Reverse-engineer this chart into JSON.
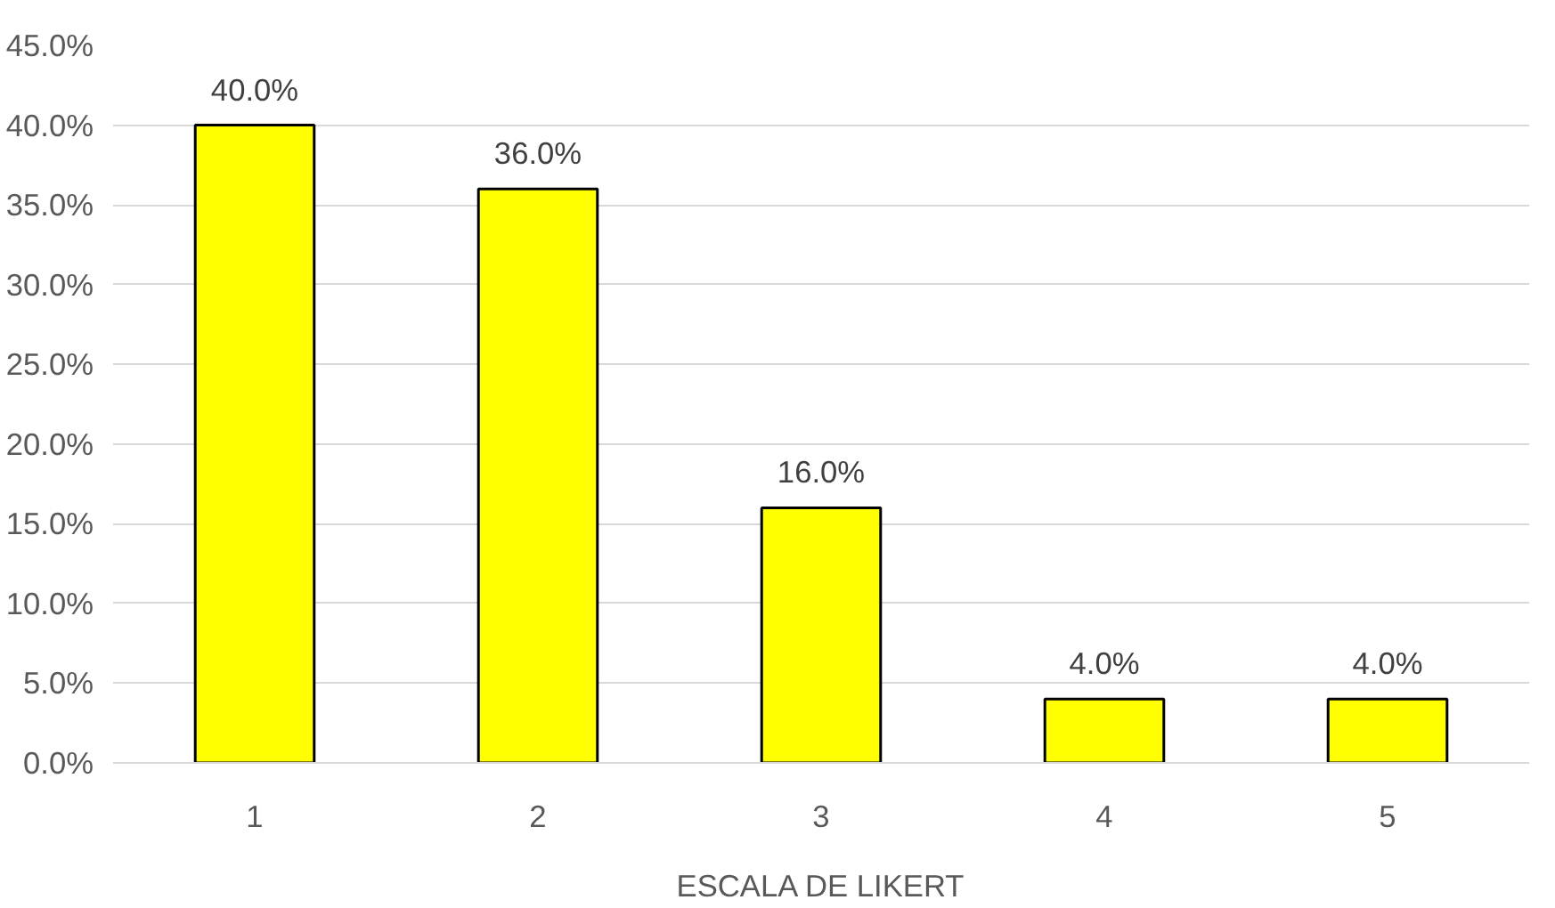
{
  "chart_data": {
    "type": "bar",
    "xlabel": "ESCALA DE LIKERT",
    "categories": [
      "1",
      "2",
      "3",
      "4",
      "5"
    ],
    "values": [
      40,
      36,
      16,
      4,
      4
    ],
    "value_labels": [
      "40.0%",
      "36.0%",
      "16.0%",
      "4.0%",
      "4.0%"
    ],
    "color": "#ffff00",
    "ylim": [
      0,
      45
    ],
    "yticks": [
      {
        "value": 0,
        "label": "0.0%"
      },
      {
        "value": 5,
        "label": "5.0%"
      },
      {
        "value": 10,
        "label": "10.0%"
      },
      {
        "value": 15,
        "label": "15.0%"
      },
      {
        "value": 20,
        "label": "20.0%"
      },
      {
        "value": 25,
        "label": "25.0%"
      },
      {
        "value": 30,
        "label": "30.0%"
      },
      {
        "value": 35,
        "label": "35.0%"
      },
      {
        "value": 40,
        "label": "40.0%"
      },
      {
        "value": 45,
        "label": "45.0%"
      }
    ],
    "grid": "y"
  }
}
